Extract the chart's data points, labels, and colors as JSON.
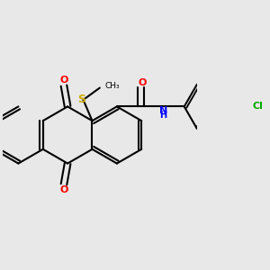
{
  "background_color": "#e8e8e8",
  "bond_color": "#000000",
  "bond_width": 1.5,
  "fig_size": [
    3.0,
    3.0
  ],
  "dpi": 100,
  "atom_colors": {
    "O": "#ff0000",
    "S": "#ccaa00",
    "N": "#0000ff",
    "Cl": "#00aa00",
    "C": "#000000"
  },
  "font_size": 8
}
